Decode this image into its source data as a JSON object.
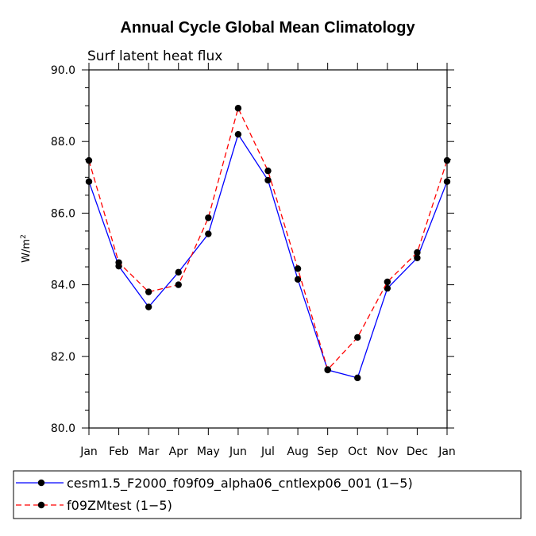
{
  "chart_data": {
    "type": "line",
    "title": "Annual Cycle Global Mean Climatology",
    "subtitle": "Surf latent heat flux",
    "xlabel": "",
    "ylabel": "W/m",
    "ylabel_superscript": "2",
    "ylim": [
      80.0,
      90.0
    ],
    "yticks": [
      80.0,
      82.0,
      84.0,
      86.0,
      88.0,
      90.0
    ],
    "ytick_labels": [
      "80.0",
      "82.0",
      "84.0",
      "86.0",
      "88.0",
      "90.0"
    ],
    "categories": [
      "Jan",
      "Feb",
      "Mar",
      "Apr",
      "May",
      "Jun",
      "Jul",
      "Aug",
      "Sep",
      "Oct",
      "Nov",
      "Dec",
      "Jan"
    ],
    "grid": false,
    "legend_position": "bottom",
    "series": [
      {
        "name": "cesm1.5_F2000_f09f09_alpha06_cntlexp06_001 (1−5)",
        "color": "#0000ff",
        "style": "solid",
        "values": [
          86.88,
          84.52,
          83.38,
          84.35,
          85.42,
          88.2,
          86.92,
          84.15,
          81.62,
          81.4,
          83.9,
          84.75,
          86.88
        ]
      },
      {
        "name": "f09ZMtest (1−5)",
        "color": "#ff0000",
        "style": "dashed",
        "values": [
          87.47,
          84.62,
          83.8,
          84.0,
          85.87,
          88.93,
          87.18,
          84.45,
          81.63,
          82.53,
          84.08,
          84.9,
          87.47
        ]
      }
    ]
  }
}
